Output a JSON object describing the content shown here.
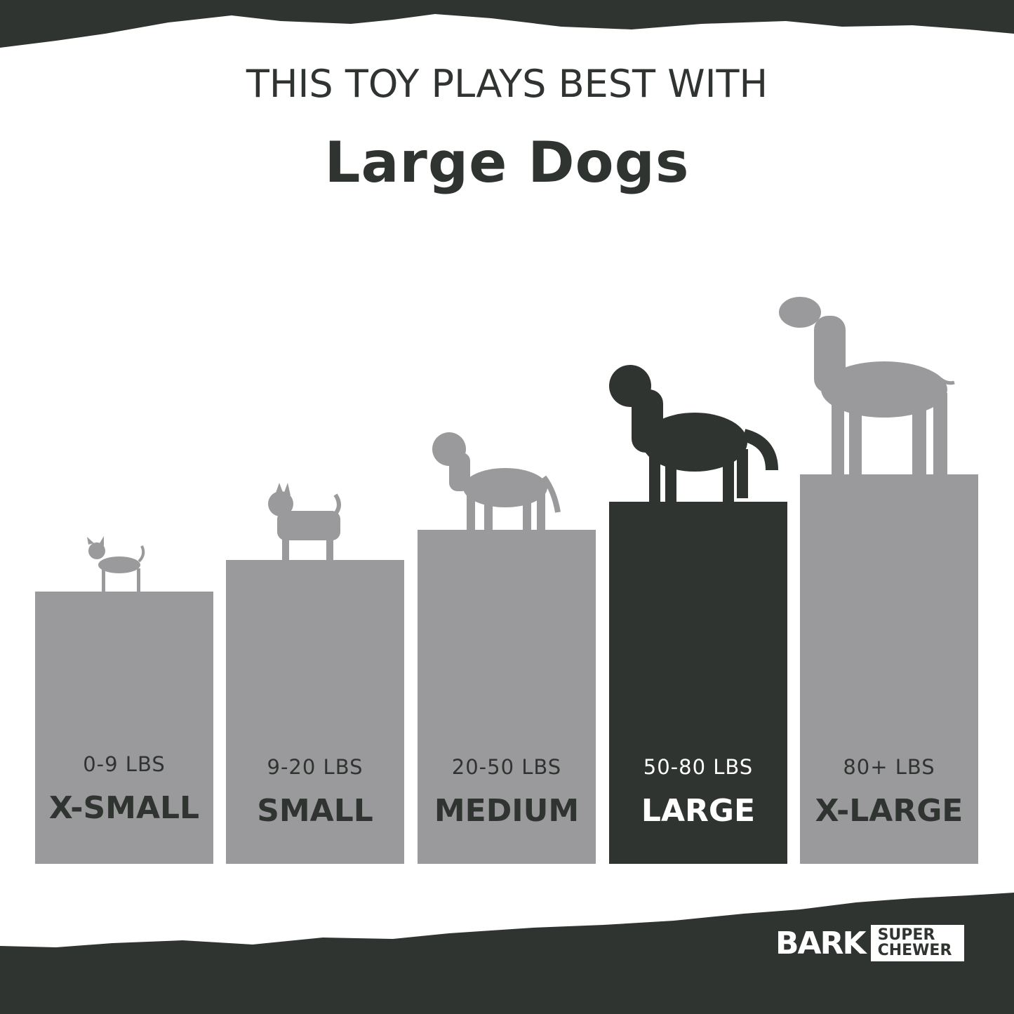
{
  "header": {
    "line1": "THIS TOY PLAYS BEST WITH",
    "line2": "Large Dogs"
  },
  "colors": {
    "dark": "#303431",
    "bar": "#9a9a9c",
    "background": "#ffffff"
  },
  "sizes": [
    {
      "weight": "0-9 LBS",
      "label": "X-SMALL",
      "dog": "chihuahua-icon",
      "highlighted": false
    },
    {
      "weight": "9-20 LBS",
      "label": "SMALL",
      "dog": "scottish-terrier-icon",
      "highlighted": false
    },
    {
      "weight": "20-50 LBS",
      "label": "MEDIUM",
      "dog": "labrador-puppy-icon",
      "highlighted": false
    },
    {
      "weight": "50-80 LBS",
      "label": "LARGE",
      "dog": "golden-retriever-icon",
      "highlighted": true
    },
    {
      "weight": "80+ LBS",
      "label": "X-LARGE",
      "dog": "great-dane-icon",
      "highlighted": false
    }
  ],
  "logo": {
    "brand": "BARK",
    "sub1": "SUPER",
    "sub2": "CHEWER"
  }
}
